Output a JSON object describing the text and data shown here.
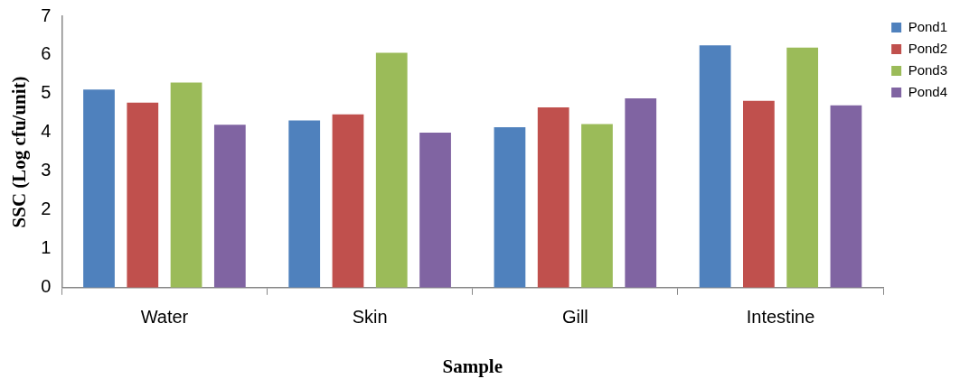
{
  "chart_data": {
    "type": "bar",
    "xlabel": "Sample",
    "ylabel": "SSC (Log cfu/unit)",
    "categories": [
      "Water",
      "Skin",
      "Gill",
      "Intestine"
    ],
    "series": [
      {
        "name": "Pond1",
        "color": "#4f81bd",
        "values": [
          5.11,
          4.31,
          4.14,
          6.25
        ]
      },
      {
        "name": "Pond2",
        "color": "#c0504d",
        "values": [
          4.77,
          4.47,
          4.65,
          4.82
        ]
      },
      {
        "name": "Pond3",
        "color": "#9bbb59",
        "values": [
          5.29,
          6.06,
          4.22,
          6.19
        ]
      },
      {
        "name": "Pond4",
        "color": "#8064a2",
        "values": [
          4.2,
          4.0,
          4.88,
          4.7
        ]
      }
    ],
    "ylim": [
      0,
      7
    ],
    "yticks": [
      0,
      1,
      2,
      3,
      4,
      5,
      6,
      7
    ],
    "grid": false,
    "legend": "top right"
  }
}
